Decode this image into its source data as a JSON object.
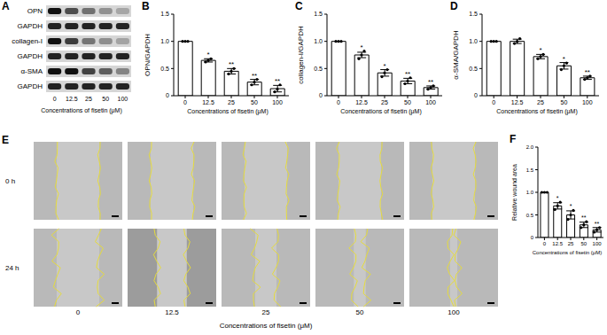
{
  "figure": {
    "panel_a": {
      "panel": "A",
      "rows": [
        "OPN",
        "GAPDH",
        "collagen-I",
        "GAPDH",
        "α-SMA",
        "GAPDH"
      ],
      "lanes": [
        "0",
        "12.5",
        "25",
        "50",
        "100"
      ],
      "xlabel": "Concentrations of fisetin (μM)"
    },
    "panel_e": {
      "panel": "E",
      "rows": [
        "0 h",
        "24 h"
      ],
      "lanes": [
        "0",
        "12.5",
        "25",
        "50",
        "100"
      ],
      "xlabel": "Concentrations of fisetin (μM)"
    }
  },
  "chart_data": [
    {
      "panel": "B",
      "type": "bar",
      "categories": [
        "0",
        "12.5",
        "25",
        "50",
        "100"
      ],
      "values": [
        1,
        0.65,
        0.45,
        0.25,
        0.13
      ],
      "errors": [
        0,
        0.03,
        0.05,
        0.05,
        0.06
      ],
      "points": [
        [
          1,
          1,
          1
        ],
        [
          0.62,
          0.65,
          0.68
        ],
        [
          0.4,
          0.45,
          0.5
        ],
        [
          0.2,
          0.25,
          0.3
        ],
        [
          0.07,
          0.12,
          0.2
        ]
      ],
      "annotations": [
        null,
        "*",
        "**",
        "**",
        "**"
      ],
      "xlabel": "Concentrations of fisetin (μM)",
      "ylabel": "OPN/GAPDH",
      "ylim": [
        0,
        1.5
      ],
      "yticks": [
        0,
        0.5,
        {
          "value": 1,
          "label": "1.0"
        },
        1.5
      ],
      "color": "#ffffff",
      "marker": "circle"
    },
    {
      "panel": "C",
      "type": "bar",
      "categories": [
        "0",
        "12.5",
        "25",
        "50",
        "100"
      ],
      "values": [
        1,
        0.75,
        0.42,
        0.27,
        0.15
      ],
      "errors": [
        0,
        0.05,
        0.06,
        0.05,
        0.03
      ],
      "points": [
        [
          1,
          1,
          1
        ],
        [
          0.68,
          0.75,
          0.82
        ],
        [
          0.35,
          0.42,
          0.48
        ],
        [
          0.22,
          0.27,
          0.33
        ],
        [
          0.12,
          0.15,
          0.18
        ]
      ],
      "annotations": [
        null,
        "*",
        "*",
        "**",
        "**"
      ],
      "xlabel": "Concentrations of fisetin (μM)",
      "ylabel": "collagen-I/GAPDH",
      "ylim": [
        0,
        1.5
      ],
      "yticks": [
        0,
        0.5,
        {
          "value": 1,
          "label": "1.0"
        },
        1.5
      ],
      "color": "#ffffff",
      "marker": "circle"
    },
    {
      "panel": "D",
      "type": "bar",
      "categories": [
        "0",
        "12.5",
        "25",
        "50",
        "100"
      ],
      "values": [
        1,
        1,
        0.72,
        0.55,
        0.33
      ],
      "errors": [
        0,
        0.04,
        0.04,
        0.06,
        0.03
      ],
      "points": [
        [
          1,
          1,
          1
        ],
        [
          0.96,
          1,
          1.05
        ],
        [
          0.68,
          0.72,
          0.76
        ],
        [
          0.48,
          0.55,
          0.6
        ],
        [
          0.3,
          0.33,
          0.36
        ]
      ],
      "annotations": [
        null,
        null,
        "*",
        "*",
        "**"
      ],
      "xlabel": "Concentrations of fisetin (μM)",
      "ylabel": "α-SMA/GAPDH",
      "ylim": [
        0,
        1.5
      ],
      "yticks": [
        0,
        0.5,
        {
          "value": 1,
          "label": "1.0"
        },
        1.5
      ],
      "color": "#ffffff",
      "marker": "circle"
    },
    {
      "panel": "F",
      "type": "bar",
      "categories": [
        "0",
        "12.5",
        "25",
        "50",
        "100"
      ],
      "values": [
        1,
        0.7,
        0.5,
        0.28,
        0.17
      ],
      "errors": [
        0,
        0.07,
        0.09,
        0.06,
        0.05
      ],
      "points": [
        [
          1,
          1,
          1
        ],
        [
          0.62,
          0.7,
          0.78
        ],
        [
          0.4,
          0.5,
          0.6
        ],
        [
          0.22,
          0.28,
          0.35
        ],
        [
          0.12,
          0.17,
          0.22
        ]
      ],
      "annotations": [
        null,
        "*",
        "*",
        "**",
        "**"
      ],
      "xlabel": "Concentrations of fisetin (μM)",
      "ylabel": "Relative wound area",
      "ylim": [
        0,
        2
      ],
      "yticks": [
        0,
        0.5,
        {
          "value": 1,
          "label": "1.0"
        },
        1.5,
        {
          "value": 2,
          "label": "2.0"
        }
      ],
      "color": "#ffffff",
      "marker": "circle"
    }
  ]
}
